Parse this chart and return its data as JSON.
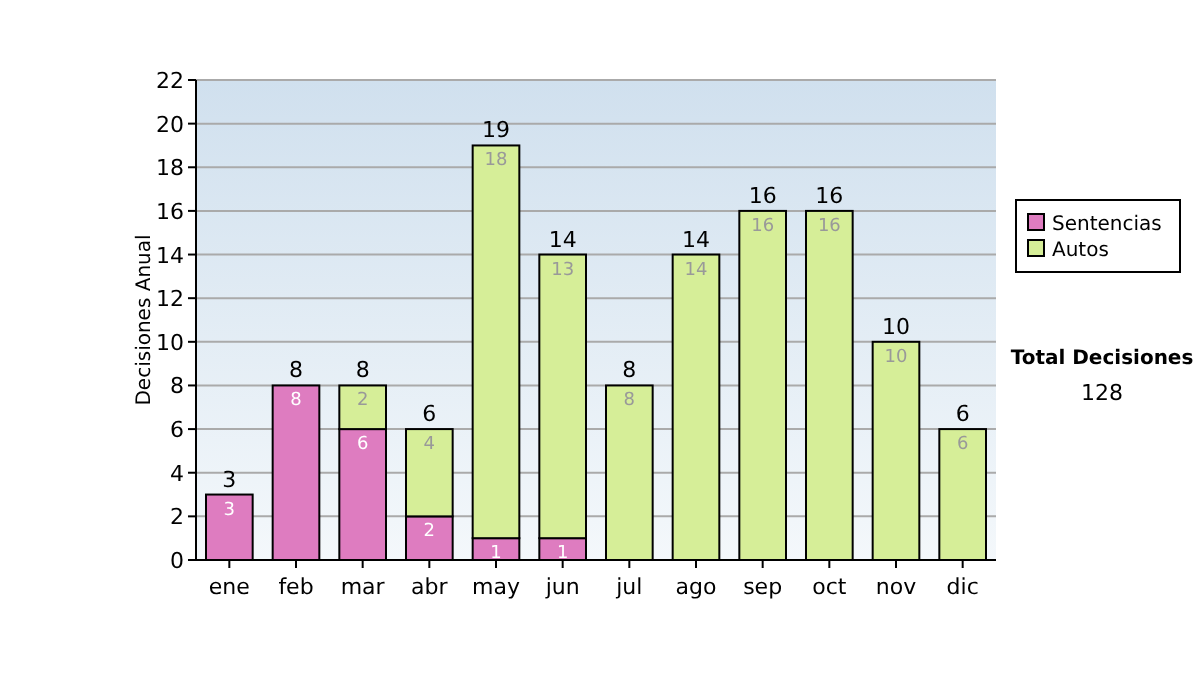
{
  "chart_data": {
    "type": "bar",
    "stacked": true,
    "ylabel": "Decisiones Anual",
    "categories": [
      "ene",
      "feb",
      "mar",
      "abr",
      "may",
      "jun",
      "jul",
      "ago",
      "sep",
      "oct",
      "nov",
      "dic"
    ],
    "series": [
      {
        "name": "Sentencias",
        "color": "#de7cc0",
        "values": [
          3,
          8,
          6,
          2,
          1,
          1,
          0,
          0,
          0,
          0,
          0,
          0
        ],
        "value_labels": [
          "3",
          "8",
          "6",
          "2",
          "1",
          "1",
          null,
          null,
          null,
          null,
          null,
          null
        ]
      },
      {
        "name": "Autos",
        "color": "#d6ee98",
        "values": [
          0,
          0,
          2,
          4,
          18,
          13,
          8,
          14,
          16,
          16,
          10,
          6
        ],
        "value_labels": [
          null,
          null,
          "2",
          "4",
          "18",
          "13",
          "8",
          "14",
          "16",
          "16",
          "10",
          "6"
        ]
      }
    ],
    "totals": [
      "3",
      "8",
      "8",
      "6",
      "19",
      "14",
      "8",
      "14",
      "16",
      "16",
      "10",
      "6"
    ],
    "ylim": [
      0,
      22
    ],
    "yticks": [
      0,
      2,
      4,
      6,
      8,
      10,
      12,
      14,
      16,
      18,
      20,
      22
    ],
    "grid": "y",
    "legend": "right",
    "annotations": [
      "Total Decisiones",
      "128"
    ]
  }
}
